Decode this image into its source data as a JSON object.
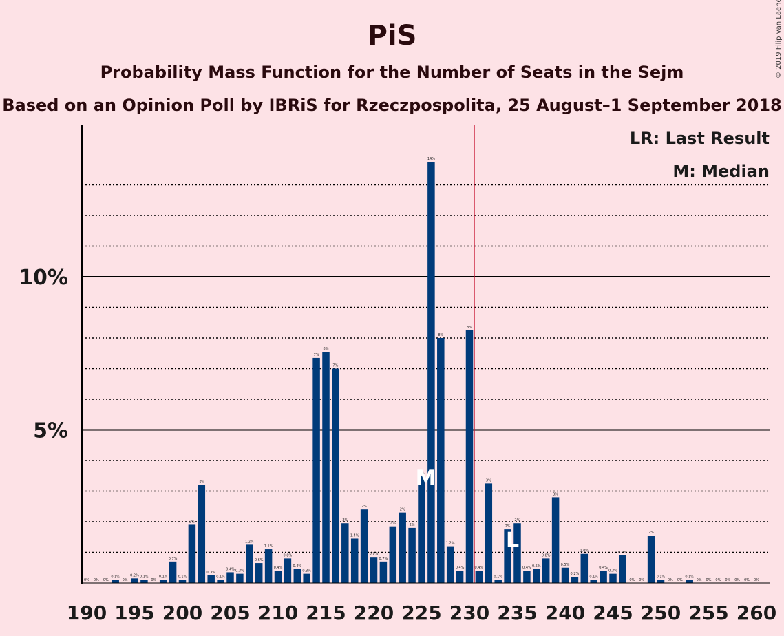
{
  "title": "PiS",
  "subtitle": "Probability Mass Function for the Number of Seats in the Sejm",
  "subtitle2": "Based on an Opinion Poll by IBRiS for Rzeczpospolita, 25 August–1 September 2018",
  "copyright": "© 2019 Filip van Laenen",
  "legend": {
    "lr": "LR: Last Result",
    "m": "M: Median"
  },
  "markers": {
    "median_label": "M",
    "median_seat": 225,
    "last_result_label": "L",
    "last_result_seat": 235,
    "majority_seat": 231
  },
  "colors": {
    "background": "#FDE2E6",
    "bar": "#003B7A",
    "majority_line": "#C8102E"
  },
  "chart_data": {
    "type": "bar",
    "title": "PiS",
    "xlabel": "",
    "ylabel": "",
    "xlim": [
      190,
      260
    ],
    "ylim": [
      0,
      15
    ],
    "x_ticks": [
      190,
      195,
      200,
      205,
      210,
      215,
      220,
      225,
      230,
      235,
      240,
      245,
      250,
      255,
      260
    ],
    "y_ticks": [
      {
        "value": 5,
        "label": "5%"
      },
      {
        "value": 10,
        "label": "10%"
      }
    ],
    "minor_gridlines": [
      1,
      2,
      3,
      4,
      6,
      7,
      8,
      9,
      11,
      12,
      13
    ],
    "x": [
      190,
      191,
      192,
      193,
      194,
      195,
      196,
      197,
      198,
      199,
      200,
      201,
      202,
      203,
      204,
      205,
      206,
      207,
      208,
      209,
      210,
      211,
      212,
      213,
      214,
      215,
      216,
      217,
      218,
      219,
      220,
      221,
      222,
      223,
      224,
      225,
      226,
      227,
      228,
      229,
      230,
      231,
      232,
      233,
      234,
      235,
      236,
      237,
      238,
      239,
      240,
      241,
      242,
      243,
      244,
      245,
      246,
      247,
      248,
      249,
      250,
      251,
      252,
      253,
      254,
      255,
      256,
      257,
      258,
      259,
      260
    ],
    "values": [
      0,
      0,
      0,
      0.1,
      0,
      0.15,
      0.1,
      0,
      0.1,
      0.7,
      0.1,
      1.9,
      3.2,
      0.25,
      0.1,
      0.35,
      0.3,
      1.25,
      0.65,
      1.1,
      0.4,
      0.8,
      0.45,
      0.3,
      7.35,
      7.55,
      7.0,
      1.95,
      1.45,
      2.4,
      0.85,
      0.7,
      1.85,
      2.3,
      1.8,
      3.5,
      13.75,
      8.0,
      1.2,
      0.4,
      8.25,
      0.4,
      3.25,
      0.1,
      1.75,
      1.95,
      0.4,
      0.45,
      0.8,
      2.8,
      0.5,
      0.2,
      0.95,
      0.1,
      0.4,
      0.3,
      0.9,
      0,
      0,
      1.55,
      0.1,
      0,
      0,
      0.1,
      0,
      0,
      0,
      0,
      0,
      0,
      0
    ],
    "data_labels": [
      "0%",
      "0%",
      "0%",
      "0.1%",
      "0%",
      "0.2%",
      "0.1%",
      "0%",
      "0.1%",
      "0.7%",
      "0.1%",
      "2%",
      "3%",
      "0.3%",
      "0.1%",
      "0.4%",
      "0.3%",
      "1.2%",
      "0.6%",
      "1.1%",
      "0.4%",
      "0.8%",
      "0.4%",
      "0.3%",
      "7%",
      "8%",
      "7%",
      "2%",
      "1.4%",
      "2%",
      "0.9%",
      "0.7%",
      "2%",
      "2%",
      "2%",
      "4%",
      "14%",
      "8%",
      "1.2%",
      "0.4%",
      "8%",
      "0.4%",
      "3%",
      "0.1%",
      "2%",
      "2%",
      "0.4%",
      "0.5%",
      "0.8%",
      "3%",
      "0.5%",
      "0.2%",
      "1.0%",
      "0.1%",
      "0.4%",
      "0.3%",
      "0.9%",
      "0%",
      "0%",
      "2%",
      "0.1%",
      "0%",
      "0%",
      "0.1%",
      "0%",
      "0%",
      "0%",
      "0%",
      "0%",
      "0%",
      "0%"
    ]
  }
}
